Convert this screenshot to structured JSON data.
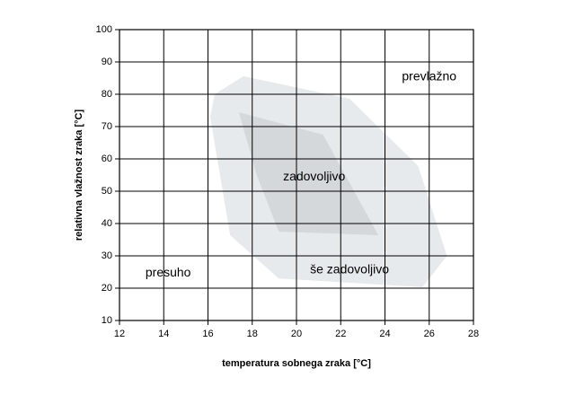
{
  "chart_data": {
    "type": "region",
    "xlabel": "temperatura sobnega zraka [°C]",
    "ylabel": "relativna vlažnost zraka [°C]",
    "xlim": [
      12,
      28
    ],
    "xticks": [
      12,
      14,
      16,
      18,
      20,
      22,
      24,
      26,
      28
    ],
    "ylim": [
      10,
      100
    ],
    "yticks": [
      10,
      20,
      30,
      40,
      50,
      60,
      70,
      80,
      90,
      100
    ],
    "grid": true,
    "regions": [
      {
        "color": "#e7eaec",
        "x": [
          16.3,
          17.6,
          22.4,
          25.5,
          26.8,
          25.7,
          19.2,
          17.0,
          16.1
        ],
        "y": [
          80,
          85.6,
          78.6,
          57.8,
          30,
          20.3,
          23,
          36.4,
          73
        ]
      },
      {
        "color": "#d4d8db",
        "x": [
          17.4,
          21.2,
          23.7,
          19.2,
          18.2
        ],
        "y": [
          74.4,
          67.5,
          36.4,
          37.5,
          55
        ]
      }
    ],
    "annotations": [
      {
        "text": "prevlažno",
        "x": 26,
        "y": 85.3
      },
      {
        "text": "zadovoljivo",
        "x": 20.8,
        "y": 54.4
      },
      {
        "text": "še zadovoljivo",
        "x": 22.4,
        "y": 25.6
      },
      {
        "text": "presuho",
        "x": 14.2,
        "y": 24.7
      }
    ]
  }
}
